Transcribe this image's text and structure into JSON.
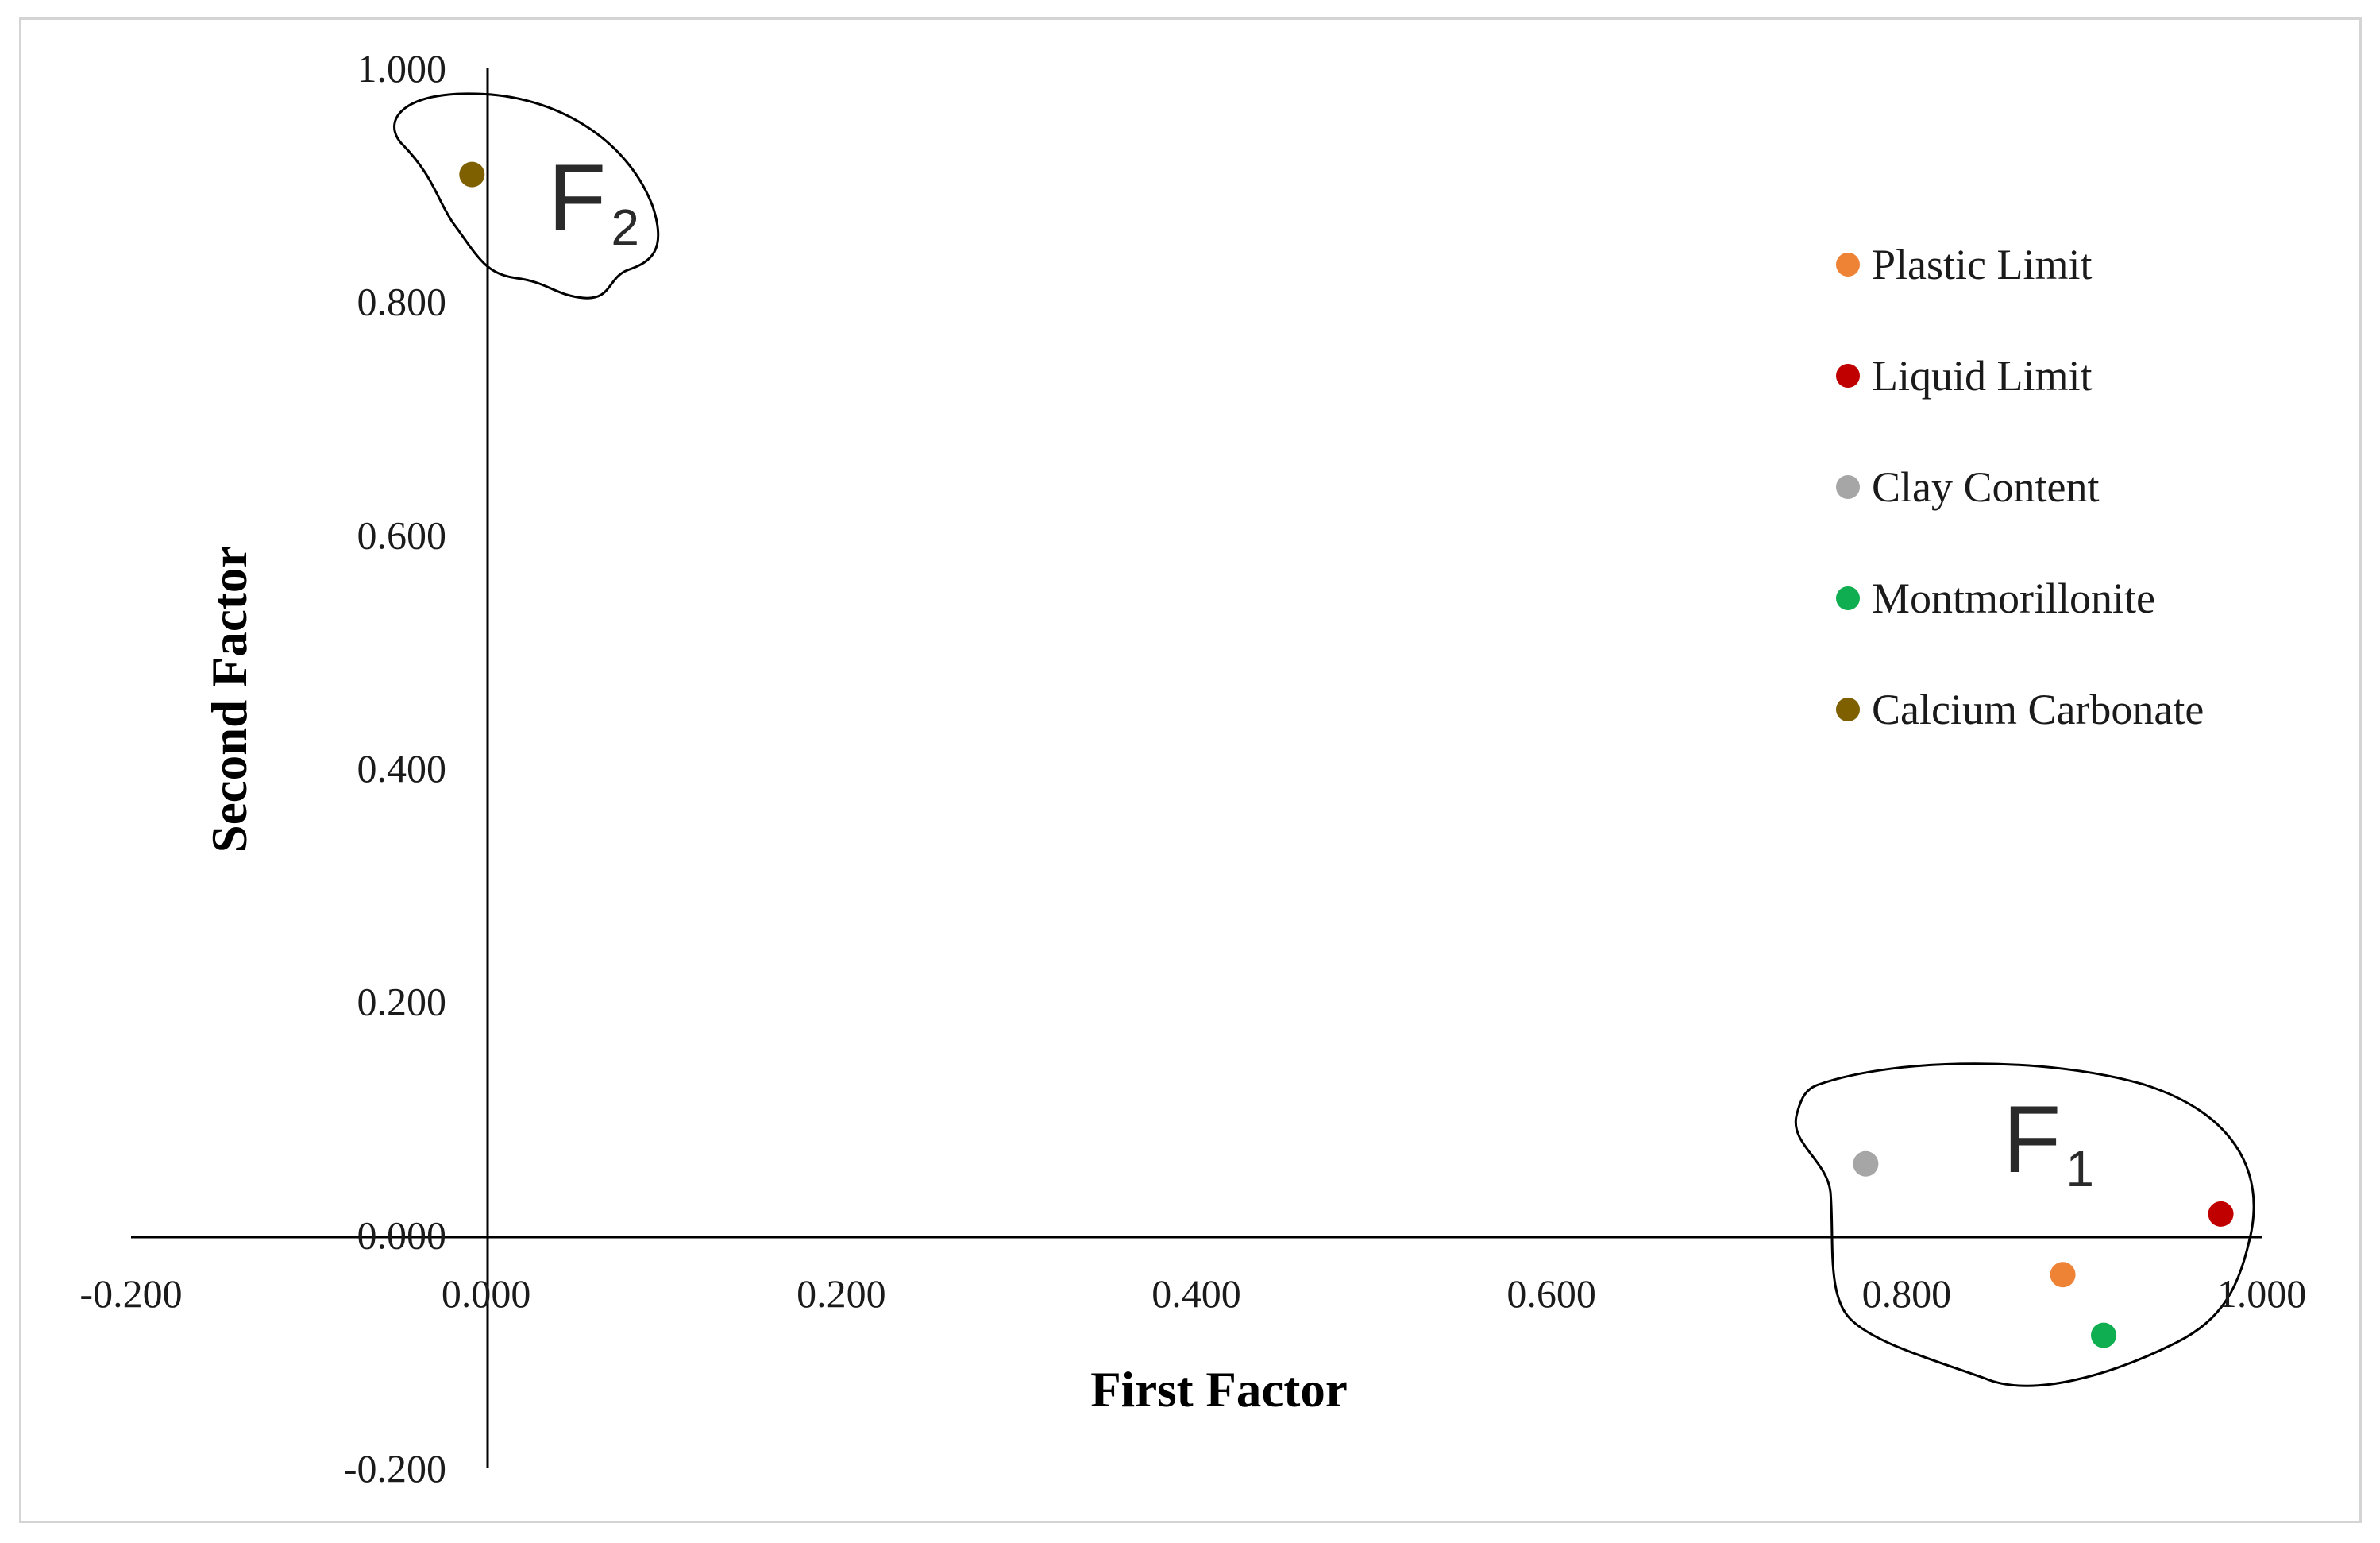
{
  "chart_data": {
    "type": "scatter",
    "title": "",
    "xlabel": "First Factor",
    "ylabel": "Second Factor",
    "xlim": [
      -0.2,
      1.0
    ],
    "ylim": [
      -0.2,
      1.0
    ],
    "x_ticks": [
      "-0.200",
      "0.000",
      "0.200",
      "0.400",
      "0.600",
      "0.800",
      "1.000"
    ],
    "y_ticks": [
      "1.000",
      "0.800",
      "0.600",
      "0.400",
      "0.200",
      "0.000",
      "-0.200"
    ],
    "grid": false,
    "legend_position": "top-right",
    "series": [
      {
        "name": "Plastic Limit",
        "color": "#ee8235",
        "x": 0.888,
        "y": -0.034
      },
      {
        "name": "Liquid Limit",
        "color": "#c00000",
        "x": 0.977,
        "y": 0.018
      },
      {
        "name": "Clay Content",
        "color": "#a6a6a6",
        "x": 0.777,
        "y": 0.061
      },
      {
        "name": "Montmorillonite",
        "color": "#0fae50",
        "x": 0.911,
        "y": -0.086
      },
      {
        "name": "Calcium Carbonate",
        "color": "#7f6000",
        "x": -0.008,
        "y": 0.909
      }
    ],
    "annotations": [
      {
        "letter": "F",
        "subscript": "1"
      },
      {
        "letter": "F",
        "subscript": "2"
      }
    ]
  }
}
